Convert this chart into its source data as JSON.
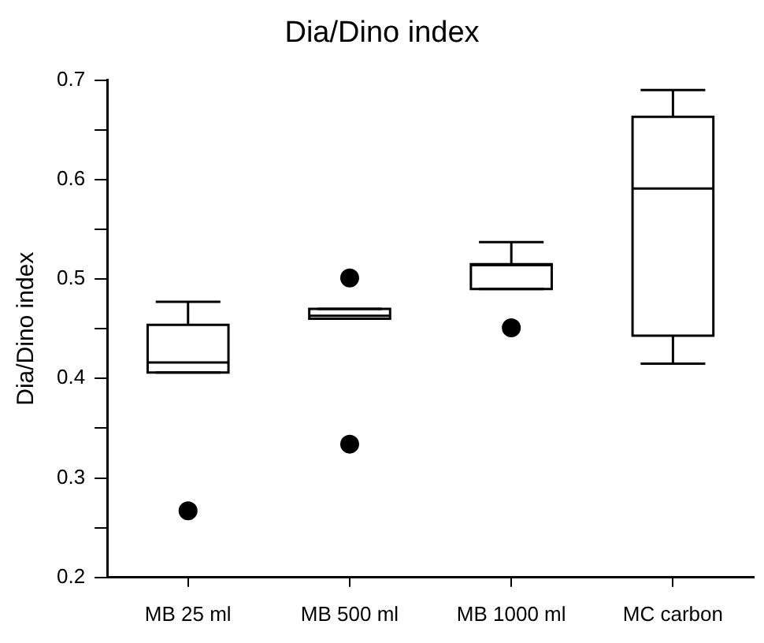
{
  "chart_data": {
    "type": "box",
    "title": "Dia/Dino index",
    "ylabel": "Dia/Dino index",
    "categories": [
      "MB 25 ml",
      "MB 500 ml",
      "MB 1000 ml",
      "MC carbon"
    ],
    "boxes": [
      {
        "low": 0.406,
        "q1": 0.406,
        "median": 0.416,
        "q3": 0.454,
        "high": 0.477,
        "outliers": [
          0.267
        ]
      },
      {
        "low": 0.46,
        "q1": 0.46,
        "median": 0.463,
        "q3": 0.47,
        "high": 0.47,
        "outliers": [
          0.501,
          0.334
        ]
      },
      {
        "low": 0.49,
        "q1": 0.49,
        "median": 0.514,
        "q3": 0.515,
        "high": 0.537,
        "outliers": [
          0.451
        ]
      },
      {
        "low": 0.415,
        "q1": 0.443,
        "median": 0.591,
        "q3": 0.663,
        "high": 0.69
      }
    ],
    "color": "#000000",
    "ylim": [
      0.2,
      0.7
    ],
    "yticks": [
      0.2,
      {
        "value": 0.25,
        "label": null
      },
      0.3,
      {
        "value": 0.35,
        "label": null
      },
      0.4,
      {
        "value": 0.45,
        "label": null
      },
      0.5,
      {
        "value": 0.55,
        "label": null
      },
      0.6,
      {
        "value": 0.65,
        "label": null
      },
      0.7
    ],
    "grid": false,
    "legend": false
  }
}
